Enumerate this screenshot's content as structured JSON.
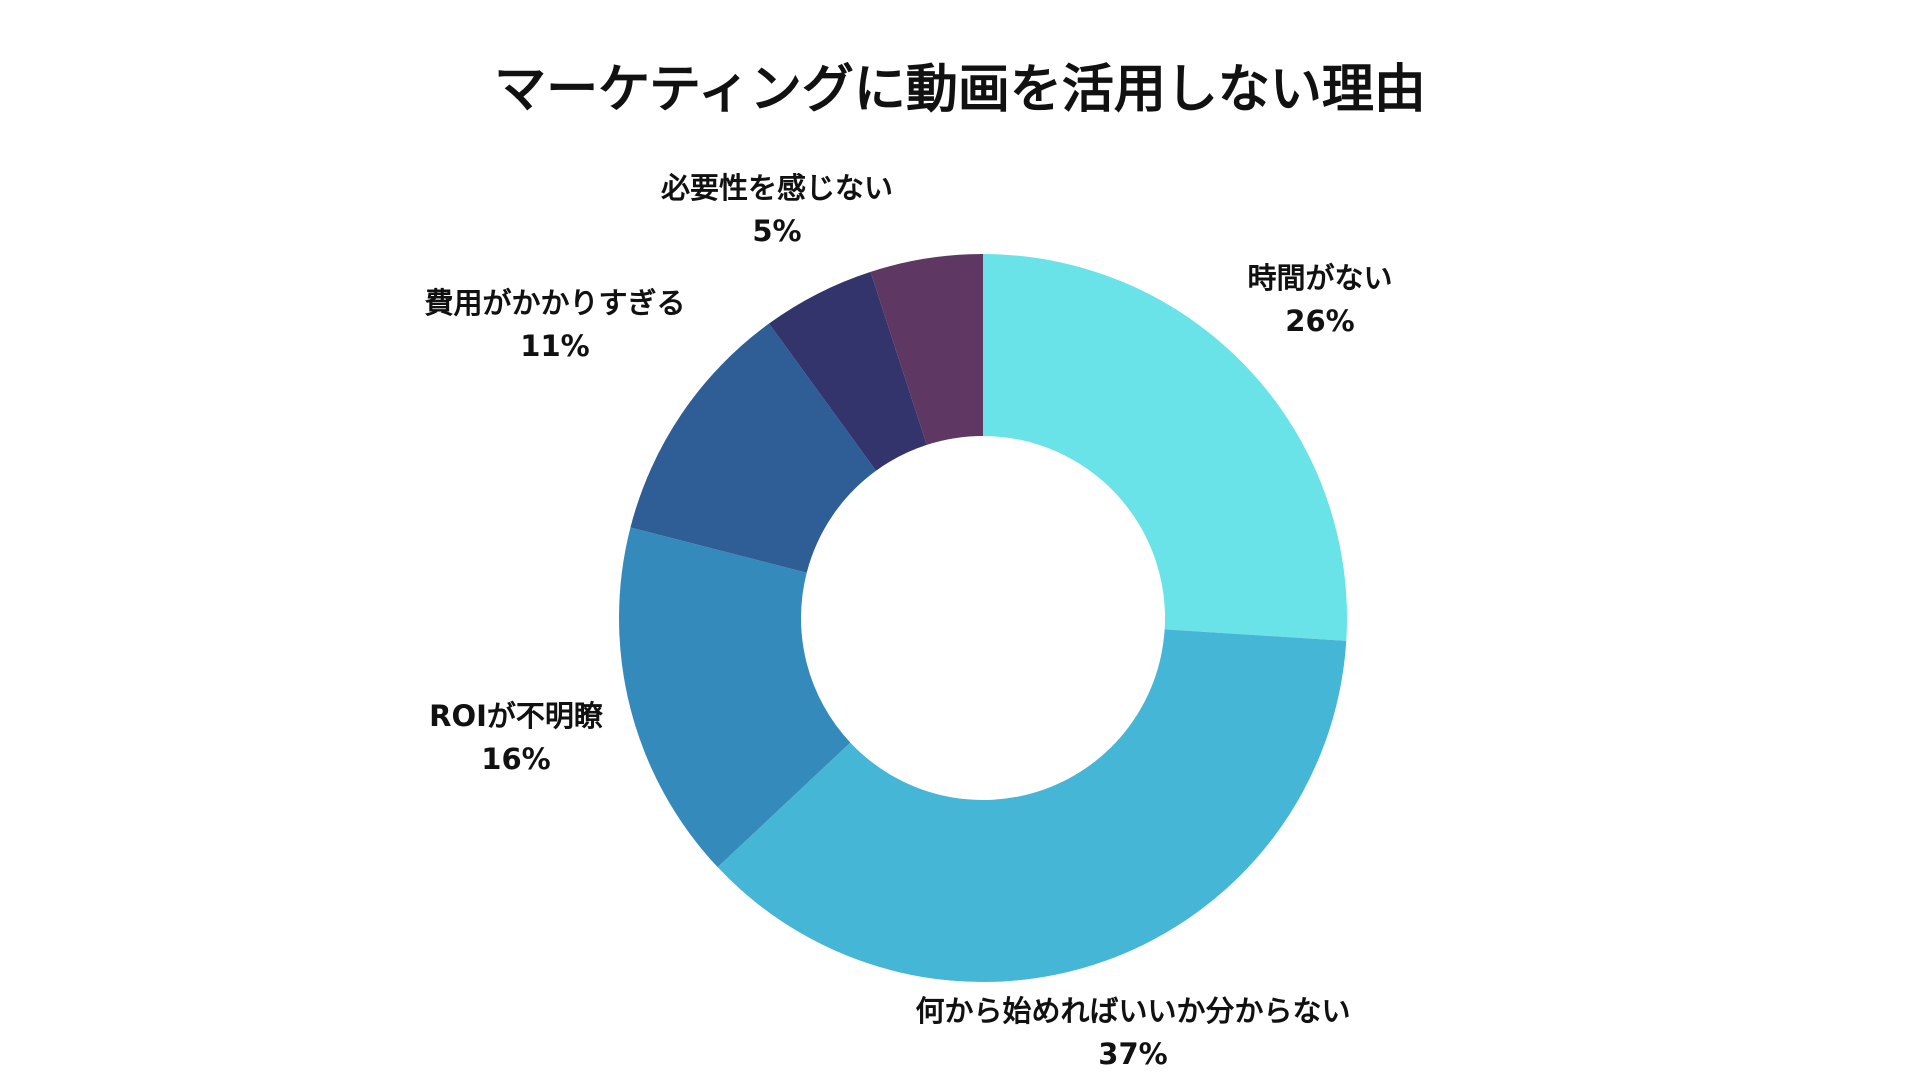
{
  "chart_data": {
    "type": "donut",
    "title": "マーケティングに動画を活用しない理由",
    "categories": [
      "時間がない",
      "何から始めればいいか分からない",
      "ROIが不明瞭",
      "費用がかかりすぎる",
      "必要性を感じない",
      null
    ],
    "values": [
      26,
      37,
      16,
      11,
      5,
      5
    ],
    "value_labels": [
      "26%",
      "37%",
      "16%",
      "11%",
      "5%",
      null
    ],
    "colors": [
      "#6ae3e8",
      "#46b6d6",
      "#348bbb",
      "#2f5e96",
      "#32346b",
      "#5e3863"
    ]
  }
}
